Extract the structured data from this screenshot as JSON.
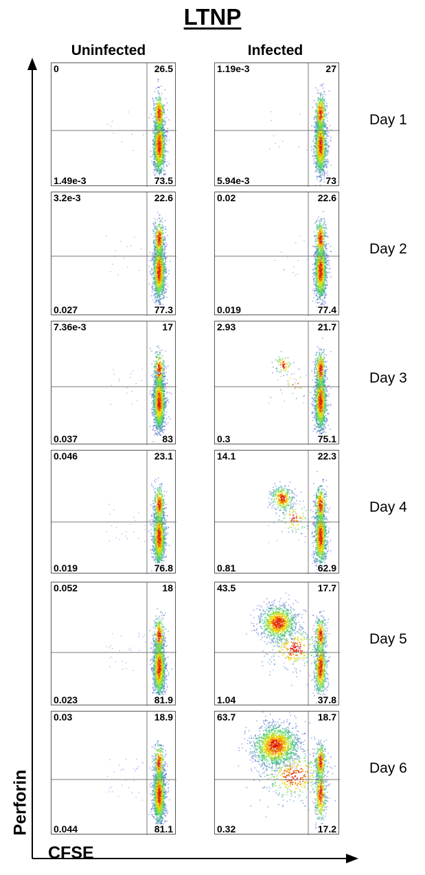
{
  "title": "LTNP",
  "axes": {
    "y_label": "Perforin",
    "x_label": "CFSE"
  },
  "chart_data": {
    "type": "scatter",
    "subtype": "flow-cytometry-density-grid",
    "xlabel": "CFSE",
    "ylabel": "Perforin",
    "columns": [
      "Uninfected",
      "Infected"
    ],
    "rows": [
      "Day 1",
      "Day 2",
      "Day 3",
      "Day 4",
      "Day 5",
      "Day 6"
    ],
    "quadrant_order": [
      "upper-left",
      "upper-right",
      "lower-left",
      "lower-right"
    ],
    "panels": [
      {
        "row": "Day 1",
        "column": "Uninfected",
        "ul": "0",
        "ur": "26.5",
        "ll": "1.49e-3",
        "lr": "73.5"
      },
      {
        "row": "Day 1",
        "column": "Infected",
        "ul": "1.19e-3",
        "ur": "27",
        "ll": "5.94e-3",
        "lr": "73"
      },
      {
        "row": "Day 2",
        "column": "Uninfected",
        "ul": "3.2e-3",
        "ur": "22.6",
        "ll": "0.027",
        "lr": "77.3"
      },
      {
        "row": "Day 2",
        "column": "Infected",
        "ul": "0.02",
        "ur": "22.6",
        "ll": "0.019",
        "lr": "77.4"
      },
      {
        "row": "Day 3",
        "column": "Uninfected",
        "ul": "7.36e-3",
        "ur": "17",
        "ll": "0.037",
        "lr": "83"
      },
      {
        "row": "Day 3",
        "column": "Infected",
        "ul": "2.93",
        "ur": "21.7",
        "ll": "0.3",
        "lr": "75.1"
      },
      {
        "row": "Day 4",
        "column": "Uninfected",
        "ul": "0.046",
        "ur": "23.1",
        "ll": "0.019",
        "lr": "76.8"
      },
      {
        "row": "Day 4",
        "column": "Infected",
        "ul": "14.1",
        "ur": "22.3",
        "ll": "0.81",
        "lr": "62.9"
      },
      {
        "row": "Day 5",
        "column": "Uninfected",
        "ul": "0.052",
        "ur": "18",
        "ll": "0.023",
        "lr": "81.9"
      },
      {
        "row": "Day 5",
        "column": "Infected",
        "ul": "43.5",
        "ur": "17.7",
        "ll": "1.04",
        "lr": "37.8"
      },
      {
        "row": "Day 6",
        "column": "Uninfected",
        "ul": "0.03",
        "ur": "18.9",
        "ll": "0.044",
        "lr": "81.1"
      },
      {
        "row": "Day 6",
        "column": "Infected",
        "ul": "63.7",
        "ur": "18.7",
        "ll": "0.32",
        "lr": "17.2"
      }
    ],
    "colors": {
      "low": "#2b35d8",
      "mid": "#39d46a",
      "high": "#ffe000",
      "peak": "#e01010"
    }
  }
}
